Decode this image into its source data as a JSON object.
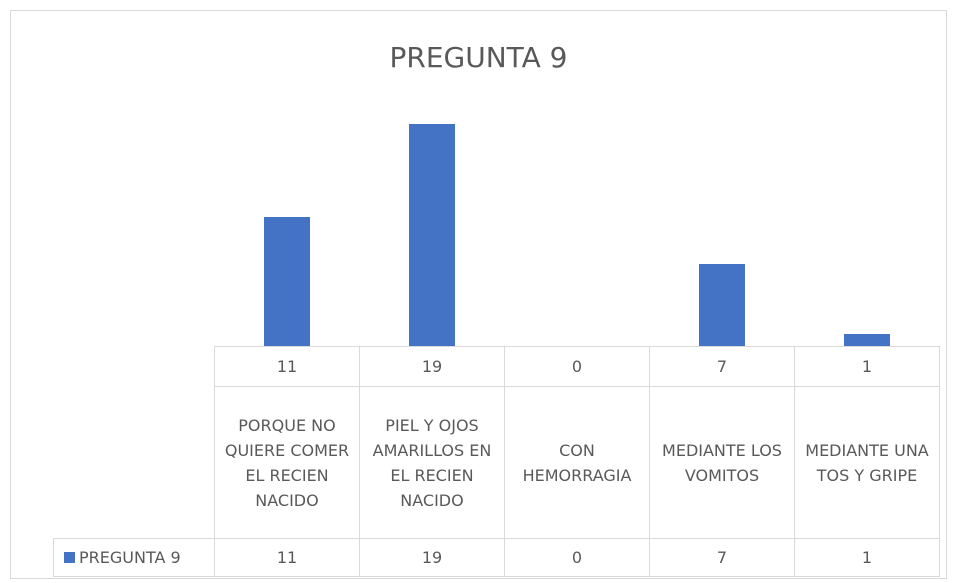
{
  "chart_data": {
    "type": "bar",
    "title": "PREGUNTA 9",
    "categories": [
      "PORQUE NO QUIERE COMER EL RECIEN NACIDO",
      "PIEL Y OJOS AMARILLOS EN EL RECIEN NACIDO",
      "CON HEMORRAGIA",
      "MEDIANTE LOS VOMITOS",
      "MEDIANTE UNA TOS Y GRIPE"
    ],
    "series": [
      {
        "name": "PREGUNTA 9",
        "color": "#4472c4",
        "values": [
          11,
          19,
          0,
          7,
          1
        ]
      }
    ],
    "ylim": [
      0,
      20
    ]
  }
}
